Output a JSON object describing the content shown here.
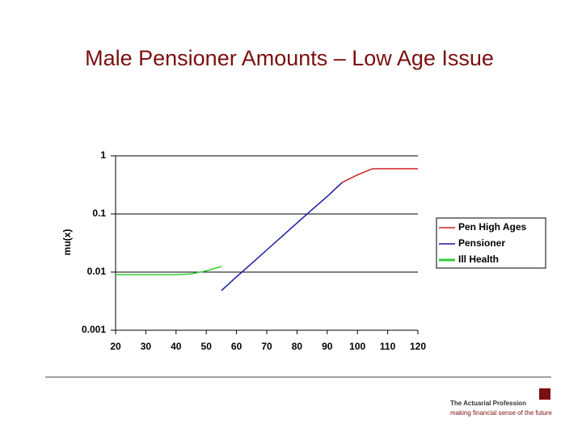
{
  "slide": {
    "title": "Male Pensioner Amounts – Low Age Issue"
  },
  "chart_data": {
    "type": "line",
    "y_label": "mu(x)",
    "log_scale_y": true,
    "grid": true,
    "legend_position": "right",
    "xlim": [
      20,
      120
    ],
    "xticks": [
      20,
      30,
      40,
      50,
      60,
      70,
      80,
      90,
      100,
      110,
      120
    ],
    "ylim": [
      0.001,
      1
    ],
    "yticks": [
      1,
      0.1,
      0.01,
      0.001
    ],
    "series": [
      {
        "name": "Pen High Ages",
        "color": "#cc2222",
        "x": [
          95,
          100,
          105,
          110,
          115,
          120
        ],
        "values": [
          0.35,
          0.47,
          0.6,
          0.6,
          0.6,
          0.6
        ]
      },
      {
        "name": "Pensioner",
        "color": "#1a1aa8",
        "x": [
          55,
          60,
          65,
          70,
          75,
          80,
          85,
          90,
          95
        ],
        "values": [
          0.0048,
          0.0083,
          0.0141,
          0.024,
          0.041,
          0.07,
          0.119,
          0.2,
          0.35
        ]
      },
      {
        "name": "Ill Health",
        "color": "#33cc33",
        "x": [
          20,
          25,
          30,
          35,
          40,
          45,
          50,
          55
        ],
        "values": [
          0.009,
          0.009,
          0.009,
          0.009,
          0.009,
          0.0093,
          0.0105,
          0.0125
        ]
      }
    ]
  },
  "footer": {
    "organization": "The Actuarial Profession",
    "tagline": "making financial sense of the future"
  }
}
